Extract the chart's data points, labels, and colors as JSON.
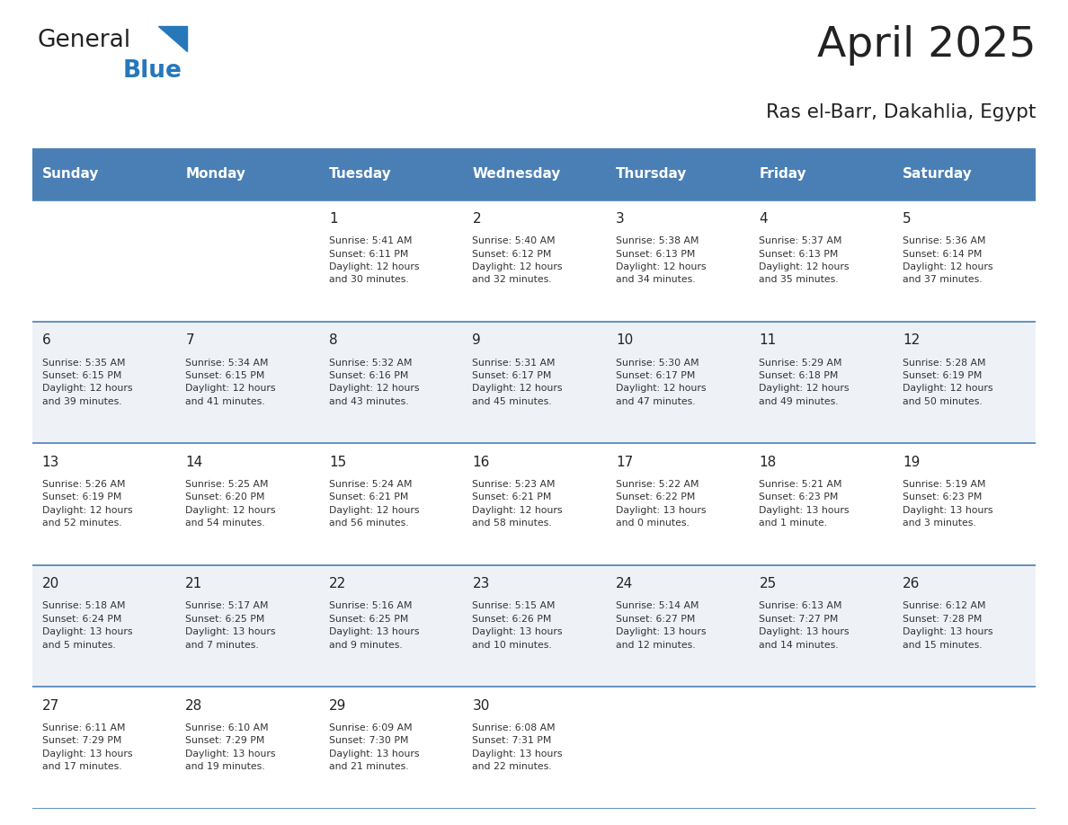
{
  "title": "April 2025",
  "subtitle": "Ras el-Barr, Dakahlia, Egypt",
  "header_bg": "#4a7fb5",
  "header_text": "#ffffff",
  "row_bg_even": "#eef2f7",
  "row_bg_odd": "#ffffff",
  "cell_text": "#333333",
  "day_number_color": "#222222",
  "grid_line_color": "#4a7fb5",
  "days_of_week": [
    "Sunday",
    "Monday",
    "Tuesday",
    "Wednesday",
    "Thursday",
    "Friday",
    "Saturday"
  ],
  "weeks": [
    [
      {
        "day": "",
        "info": ""
      },
      {
        "day": "",
        "info": ""
      },
      {
        "day": "1",
        "info": "Sunrise: 5:41 AM\nSunset: 6:11 PM\nDaylight: 12 hours\nand 30 minutes."
      },
      {
        "day": "2",
        "info": "Sunrise: 5:40 AM\nSunset: 6:12 PM\nDaylight: 12 hours\nand 32 minutes."
      },
      {
        "day": "3",
        "info": "Sunrise: 5:38 AM\nSunset: 6:13 PM\nDaylight: 12 hours\nand 34 minutes."
      },
      {
        "day": "4",
        "info": "Sunrise: 5:37 AM\nSunset: 6:13 PM\nDaylight: 12 hours\nand 35 minutes."
      },
      {
        "day": "5",
        "info": "Sunrise: 5:36 AM\nSunset: 6:14 PM\nDaylight: 12 hours\nand 37 minutes."
      }
    ],
    [
      {
        "day": "6",
        "info": "Sunrise: 5:35 AM\nSunset: 6:15 PM\nDaylight: 12 hours\nand 39 minutes."
      },
      {
        "day": "7",
        "info": "Sunrise: 5:34 AM\nSunset: 6:15 PM\nDaylight: 12 hours\nand 41 minutes."
      },
      {
        "day": "8",
        "info": "Sunrise: 5:32 AM\nSunset: 6:16 PM\nDaylight: 12 hours\nand 43 minutes."
      },
      {
        "day": "9",
        "info": "Sunrise: 5:31 AM\nSunset: 6:17 PM\nDaylight: 12 hours\nand 45 minutes."
      },
      {
        "day": "10",
        "info": "Sunrise: 5:30 AM\nSunset: 6:17 PM\nDaylight: 12 hours\nand 47 minutes."
      },
      {
        "day": "11",
        "info": "Sunrise: 5:29 AM\nSunset: 6:18 PM\nDaylight: 12 hours\nand 49 minutes."
      },
      {
        "day": "12",
        "info": "Sunrise: 5:28 AM\nSunset: 6:19 PM\nDaylight: 12 hours\nand 50 minutes."
      }
    ],
    [
      {
        "day": "13",
        "info": "Sunrise: 5:26 AM\nSunset: 6:19 PM\nDaylight: 12 hours\nand 52 minutes."
      },
      {
        "day": "14",
        "info": "Sunrise: 5:25 AM\nSunset: 6:20 PM\nDaylight: 12 hours\nand 54 minutes."
      },
      {
        "day": "15",
        "info": "Sunrise: 5:24 AM\nSunset: 6:21 PM\nDaylight: 12 hours\nand 56 minutes."
      },
      {
        "day": "16",
        "info": "Sunrise: 5:23 AM\nSunset: 6:21 PM\nDaylight: 12 hours\nand 58 minutes."
      },
      {
        "day": "17",
        "info": "Sunrise: 5:22 AM\nSunset: 6:22 PM\nDaylight: 13 hours\nand 0 minutes."
      },
      {
        "day": "18",
        "info": "Sunrise: 5:21 AM\nSunset: 6:23 PM\nDaylight: 13 hours\nand 1 minute."
      },
      {
        "day": "19",
        "info": "Sunrise: 5:19 AM\nSunset: 6:23 PM\nDaylight: 13 hours\nand 3 minutes."
      }
    ],
    [
      {
        "day": "20",
        "info": "Sunrise: 5:18 AM\nSunset: 6:24 PM\nDaylight: 13 hours\nand 5 minutes."
      },
      {
        "day": "21",
        "info": "Sunrise: 5:17 AM\nSunset: 6:25 PM\nDaylight: 13 hours\nand 7 minutes."
      },
      {
        "day": "22",
        "info": "Sunrise: 5:16 AM\nSunset: 6:25 PM\nDaylight: 13 hours\nand 9 minutes."
      },
      {
        "day": "23",
        "info": "Sunrise: 5:15 AM\nSunset: 6:26 PM\nDaylight: 13 hours\nand 10 minutes."
      },
      {
        "day": "24",
        "info": "Sunrise: 5:14 AM\nSunset: 6:27 PM\nDaylight: 13 hours\nand 12 minutes."
      },
      {
        "day": "25",
        "info": "Sunrise: 6:13 AM\nSunset: 7:27 PM\nDaylight: 13 hours\nand 14 minutes."
      },
      {
        "day": "26",
        "info": "Sunrise: 6:12 AM\nSunset: 7:28 PM\nDaylight: 13 hours\nand 15 minutes."
      }
    ],
    [
      {
        "day": "27",
        "info": "Sunrise: 6:11 AM\nSunset: 7:29 PM\nDaylight: 13 hours\nand 17 minutes."
      },
      {
        "day": "28",
        "info": "Sunrise: 6:10 AM\nSunset: 7:29 PM\nDaylight: 13 hours\nand 19 minutes."
      },
      {
        "day": "29",
        "info": "Sunrise: 6:09 AM\nSunset: 7:30 PM\nDaylight: 13 hours\nand 21 minutes."
      },
      {
        "day": "30",
        "info": "Sunrise: 6:08 AM\nSunset: 7:31 PM\nDaylight: 13 hours\nand 22 minutes."
      },
      {
        "day": "",
        "info": ""
      },
      {
        "day": "",
        "info": ""
      },
      {
        "day": "",
        "info": ""
      }
    ]
  ],
  "fig_width": 11.88,
  "fig_height": 9.18,
  "logo_text_general": "General",
  "logo_text_blue": "Blue",
  "logo_color_general": "#222222",
  "logo_color_blue": "#2777bb"
}
